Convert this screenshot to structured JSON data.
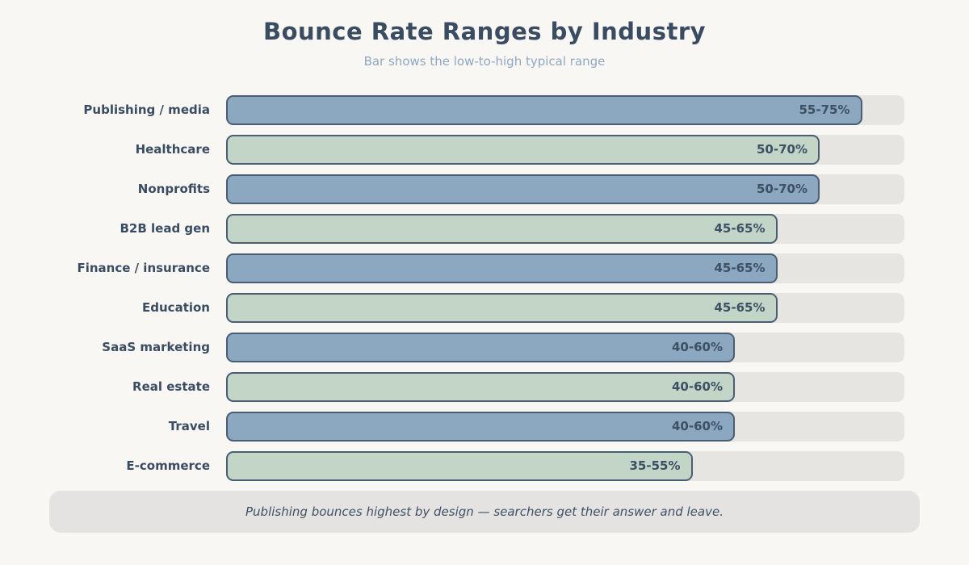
{
  "title": "Bounce Rate Ranges by Industry",
  "subtitle": "Bar shows the low-to-high typical range",
  "footnote": "Publishing bounces highest by design — searchers get their answer and leave.",
  "colors": {
    "background": "#f8f7f4",
    "track": "#e6e5e2",
    "bar_border": "#4a5d72",
    "blue": "#8ca7c0",
    "green": "#c2d5c6",
    "title_text": "#3a4c62",
    "subtitle_text": "#90a7c2",
    "value_text": "#3d5064",
    "footnote_bg": "#e4e3e1",
    "footnote_text": "#3f5165"
  },
  "chart_data": {
    "type": "bar",
    "orientation": "horizontal",
    "title": "Bounce Rate Ranges by Industry",
    "subtitle": "Bar shows the low-to-high typical range",
    "xlabel": "",
    "ylabel": "",
    "xlim": [
      0,
      80
    ],
    "grid": false,
    "legend": false,
    "bar_length_represents": "high end of range (bars start at 0)",
    "categories": [
      "Publishing / media",
      "Healthcare",
      "Nonprofits",
      "B2B lead gen",
      "Finance / insurance",
      "Education",
      "SaaS marketing",
      "Real estate",
      "Travel",
      "E-commerce"
    ],
    "rows": [
      {
        "label": "Publishing / media",
        "low": 55,
        "high": 75,
        "range_label": "55-75%",
        "color": "blue"
      },
      {
        "label": "Healthcare",
        "low": 50,
        "high": 70,
        "range_label": "50-70%",
        "color": "green"
      },
      {
        "label": "Nonprofits",
        "low": 50,
        "high": 70,
        "range_label": "50-70%",
        "color": "blue"
      },
      {
        "label": "B2B lead gen",
        "low": 45,
        "high": 65,
        "range_label": "45-65%",
        "color": "green"
      },
      {
        "label": "Finance / insurance",
        "low": 45,
        "high": 65,
        "range_label": "45-65%",
        "color": "blue"
      },
      {
        "label": "Education",
        "low": 45,
        "high": 65,
        "range_label": "45-65%",
        "color": "green"
      },
      {
        "label": "SaaS marketing",
        "low": 40,
        "high": 60,
        "range_label": "40-60%",
        "color": "blue"
      },
      {
        "label": "Real estate",
        "low": 40,
        "high": 60,
        "range_label": "40-60%",
        "color": "green"
      },
      {
        "label": "Travel",
        "low": 40,
        "high": 60,
        "range_label": "40-60%",
        "color": "blue"
      },
      {
        "label": "E-commerce",
        "low": 35,
        "high": 55,
        "range_label": "35-55%",
        "color": "green"
      }
    ]
  }
}
